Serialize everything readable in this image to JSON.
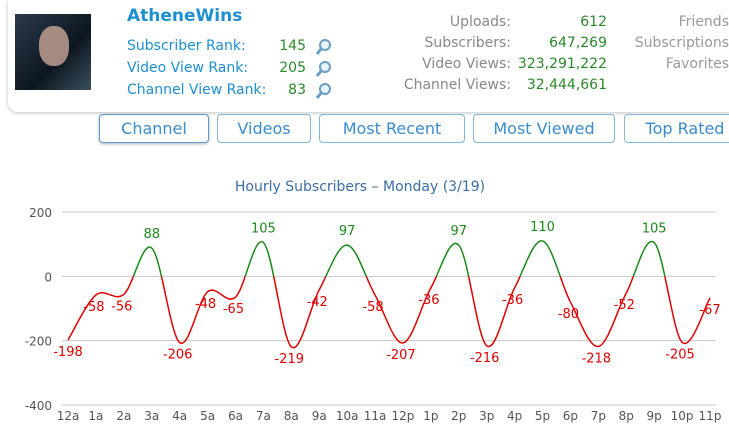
{
  "profile": {
    "name": "AtheneWins",
    "ranks": [
      {
        "label": "Subscriber Rank:",
        "value": "145"
      },
      {
        "label": "Video View Rank:",
        "value": "205"
      },
      {
        "label": "Channel View Rank:",
        "value": "83"
      }
    ],
    "stats": [
      {
        "label": "Uploads:",
        "value": "612"
      },
      {
        "label": "Subscribers:",
        "value": "647,269"
      },
      {
        "label": "Video Views:",
        "value": "323,291,222"
      },
      {
        "label": "Channel Views:",
        "value": "32,444,661"
      }
    ],
    "extra": [
      "Friends",
      "Subscriptions",
      "Favorites"
    ]
  },
  "tabs": [
    "Channel",
    "Videos",
    "Most Recent",
    "Most Viewed",
    "Top Rated"
  ],
  "chart_data": {
    "type": "line",
    "title": "Hourly Subscribers – Monday (3/19)",
    "categories": [
      "12a",
      "1a",
      "2a",
      "3a",
      "4a",
      "5a",
      "6a",
      "7a",
      "8a",
      "9a",
      "10a",
      "11a",
      "12p",
      "1p",
      "2p",
      "3p",
      "4p",
      "5p",
      "6p",
      "7p",
      "8p",
      "9p",
      "10p",
      "11p"
    ],
    "values": [
      -198,
      -58,
      -56,
      88,
      -206,
      -48,
      -65,
      105,
      -219,
      -42,
      97,
      -58,
      -207,
      -36,
      97,
      -216,
      -36,
      110,
      -80,
      -218,
      -52,
      105,
      -205,
      -67
    ],
    "color_above": "#1a8a1a",
    "color_below": "#e00000",
    "ylim": [
      -400,
      200
    ],
    "yticks": [
      200,
      0,
      -200,
      -400
    ],
    "grid": true
  }
}
